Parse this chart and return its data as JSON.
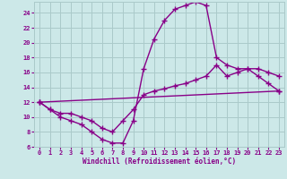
{
  "xlabel": "Windchill (Refroidissement éolien,°C)",
  "xlim": [
    -0.5,
    23.5
  ],
  "ylim": [
    6,
    25.5
  ],
  "xticks": [
    0,
    1,
    2,
    3,
    4,
    5,
    6,
    7,
    8,
    9,
    10,
    11,
    12,
    13,
    14,
    15,
    16,
    17,
    18,
    19,
    20,
    21,
    22,
    23
  ],
  "yticks": [
    6,
    8,
    10,
    12,
    14,
    16,
    18,
    20,
    22,
    24
  ],
  "background_color": "#cce8e8",
  "grid_color": "#aacaca",
  "line_color": "#880088",
  "line_width": 1.0,
  "marker": "+",
  "marker_size": 4,
  "series": [
    {
      "x": [
        0,
        23
      ],
      "y": [
        12.0,
        13.5
      ]
    },
    {
      "x": [
        0,
        1,
        2,
        3,
        4,
        5,
        6,
        7,
        8,
        9,
        10,
        11,
        12,
        13,
        14,
        15,
        16,
        17,
        18,
        19,
        20,
        21,
        22,
        23
      ],
      "y": [
        12.0,
        11.0,
        10.5,
        10.5,
        10.0,
        9.5,
        8.5,
        8.0,
        9.5,
        11.0,
        13.0,
        13.5,
        13.8,
        14.2,
        14.5,
        15.0,
        15.5,
        17.0,
        15.5,
        16.0,
        16.5,
        16.5,
        16.0,
        15.5
      ]
    },
    {
      "x": [
        0,
        1,
        2,
        3,
        4,
        5,
        6,
        7,
        8,
        9,
        10,
        11,
        12,
        13,
        14,
        15,
        16,
        17,
        18,
        19,
        20,
        21,
        22,
        23
      ],
      "y": [
        12.0,
        11.0,
        10.0,
        9.5,
        9.0,
        8.0,
        7.0,
        6.5,
        6.5,
        9.5,
        16.5,
        20.5,
        23.0,
        24.5,
        25.0,
        25.5,
        25.0,
        18.0,
        17.0,
        16.5,
        16.5,
        15.5,
        14.5,
        13.5
      ]
    }
  ]
}
